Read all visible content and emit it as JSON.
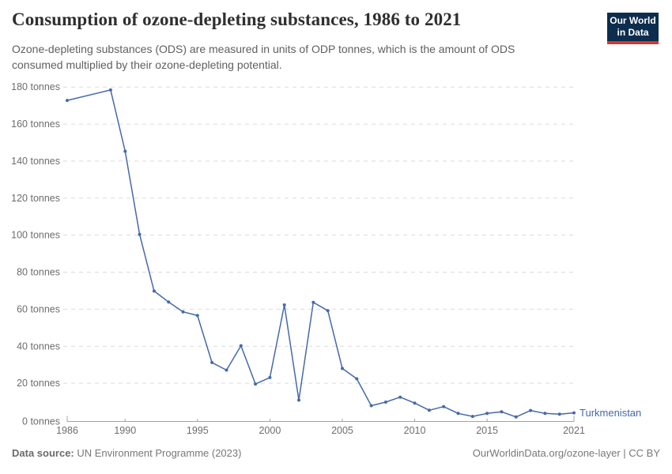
{
  "header": {
    "title": "Consumption of ozone-depleting substances, 1986 to 2021",
    "subtitle": "Ozone-depleting substances (ODS) are measured in units of ODP tonnes, which is the amount of ODS consumed multiplied by their ozone-depleting potential.",
    "logo_line1": "Our World",
    "logo_line2": "in Data"
  },
  "footer": {
    "source_label": "Data source:",
    "source_text": " UN Environment Programme (2023)",
    "right_text": "OurWorldinData.org/ozone-layer | CC BY"
  },
  "colors": {
    "series_blue": "#4569a9",
    "logo_navy": "#0c2d4d",
    "logo_red": "#d8352e",
    "gridline": "#dcdcdc",
    "axis": "#a3a3a3",
    "tick_text": "#6d6d6d"
  },
  "chart_data": {
    "type": "line",
    "title": "Consumption of ozone-depleting substances, 1986 to 2021",
    "ylabel": "",
    "xlabel": "",
    "y_tick_suffix": " tonnes",
    "y_ticks": [
      0,
      20,
      40,
      60,
      80,
      100,
      120,
      140,
      160,
      180
    ],
    "x_ticks": [
      1986,
      1990,
      1995,
      2000,
      2005,
      2010,
      2015,
      2021
    ],
    "xlim": [
      1986,
      2021
    ],
    "ylim": [
      0,
      180
    ],
    "grid": "horizontal-dashed",
    "legend_position": "end-of-line-label",
    "series": [
      {
        "name": "Turkmenistan",
        "unit": "ODP tonnes",
        "points": [
          [
            1986,
            172.8
          ],
          [
            1989,
            178.4
          ],
          [
            1990,
            145.3
          ],
          [
            1991,
            100.4
          ],
          [
            1992,
            69.8
          ],
          [
            1993,
            63.9
          ],
          [
            1994,
            58.6
          ],
          [
            1995,
            56.6
          ],
          [
            1996,
            31.2
          ],
          [
            1997,
            27.1
          ],
          [
            1998,
            40.3
          ],
          [
            1999,
            19.6
          ],
          [
            2000,
            23.1
          ],
          [
            2001,
            62.3
          ],
          [
            2002,
            10.9
          ],
          [
            2003,
            63.7
          ],
          [
            2004,
            59.2
          ],
          [
            2005,
            28.0
          ],
          [
            2006,
            22.4
          ],
          [
            2007,
            7.9
          ],
          [
            2008,
            9.8
          ],
          [
            2009,
            12.5
          ],
          [
            2010,
            9.3
          ],
          [
            2011,
            5.4
          ],
          [
            2012,
            7.4
          ],
          [
            2013,
            3.7
          ],
          [
            2014,
            2.1
          ],
          [
            2015,
            3.7
          ],
          [
            2016,
            4.6
          ],
          [
            2017,
            1.8
          ],
          [
            2018,
            5.3
          ],
          [
            2019,
            3.7
          ],
          [
            2020,
            3.3
          ],
          [
            2021,
            4.0
          ]
        ]
      }
    ]
  }
}
